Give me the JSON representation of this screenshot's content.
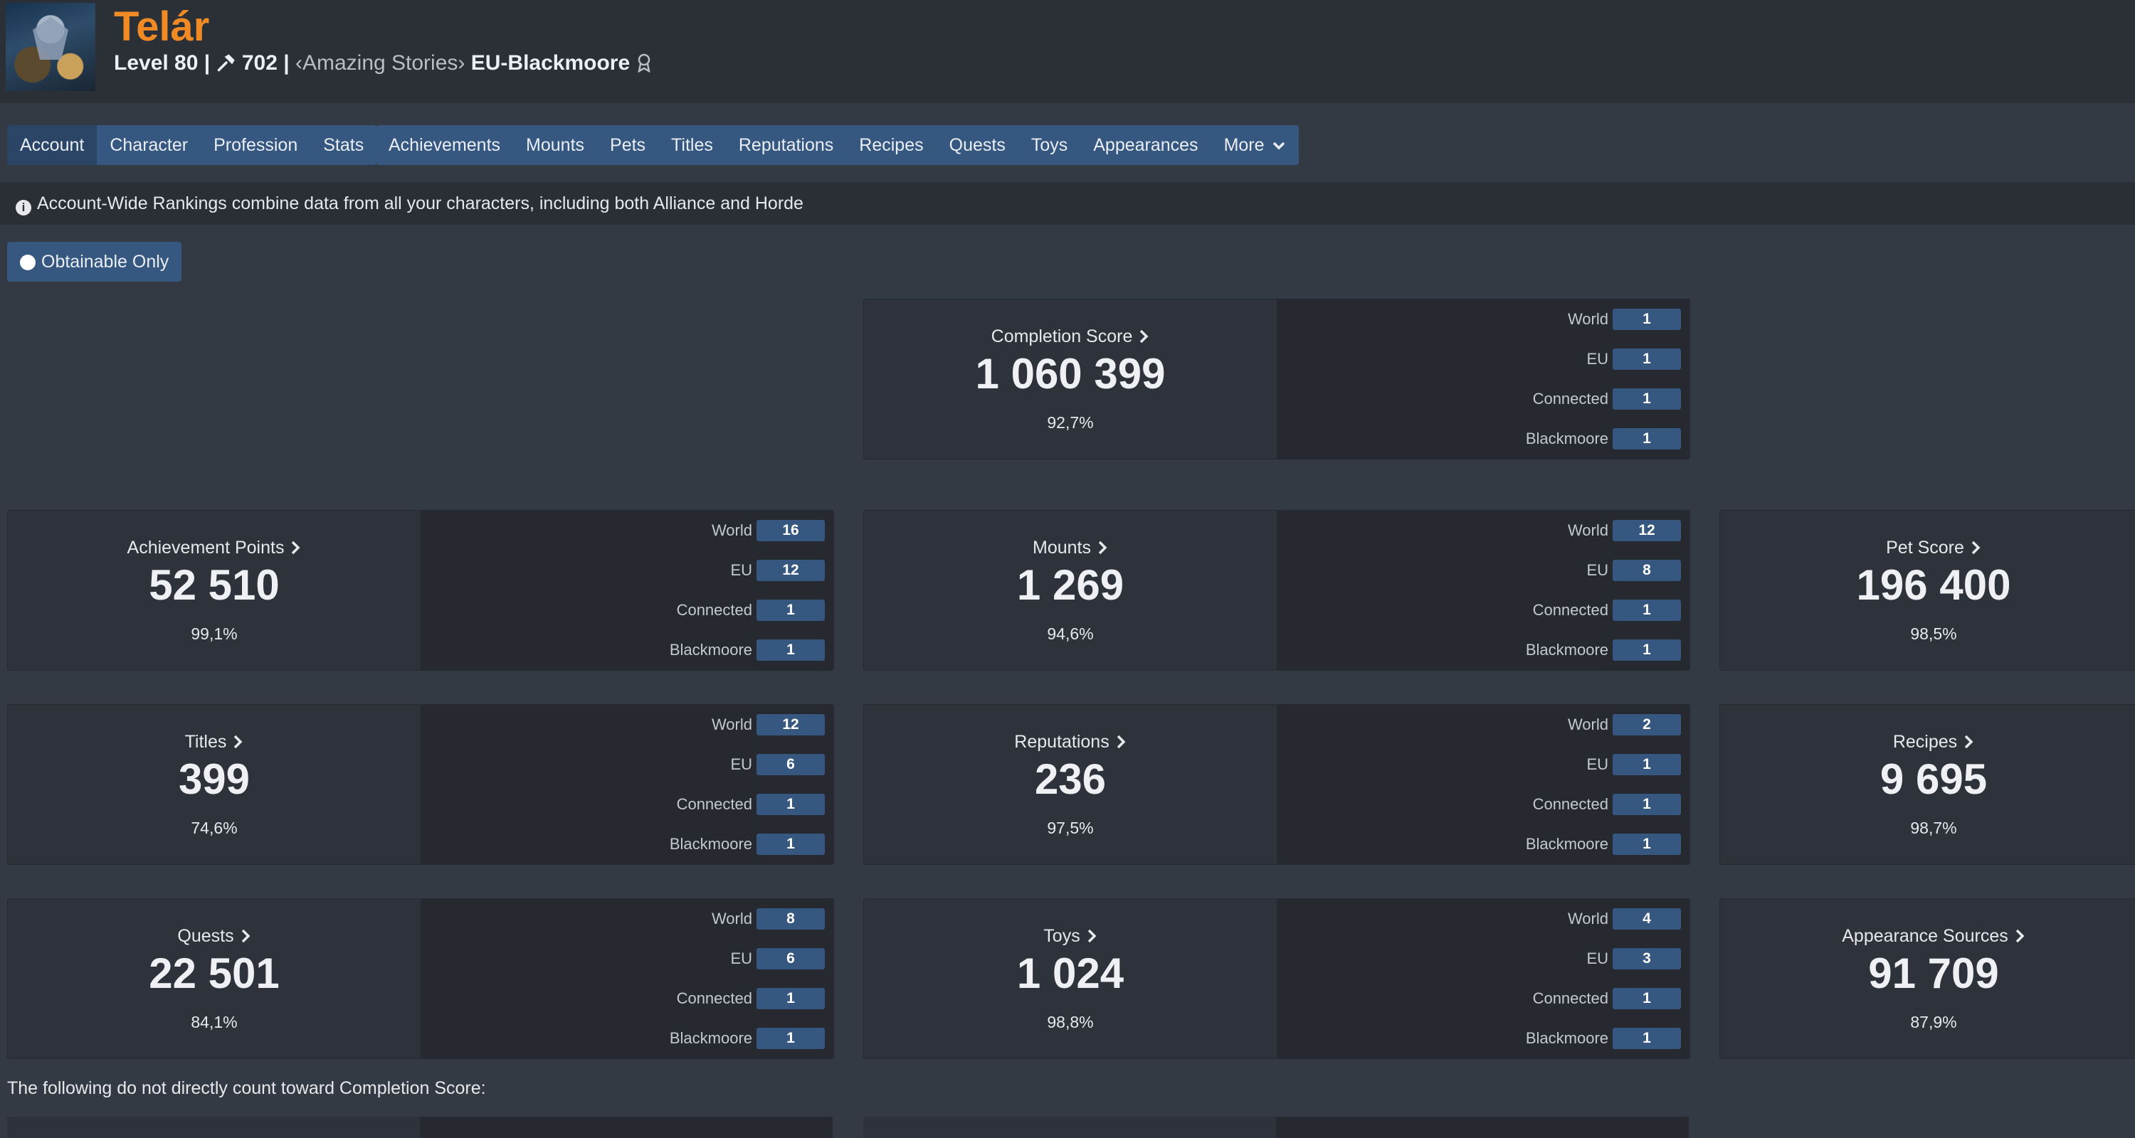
{
  "header": {
    "name": "Telár",
    "level_text": "Level 80 |",
    "item_level": "702 |",
    "guild": "‹Amazing Stories›",
    "realm": "EU-Blackmoore"
  },
  "nav_primary": [
    {
      "label": "Account",
      "active": true
    },
    {
      "label": "Character"
    },
    {
      "label": "Profession"
    },
    {
      "label": "Stats"
    }
  ],
  "nav_secondary": [
    {
      "label": "Achievements"
    },
    {
      "label": "Mounts"
    },
    {
      "label": "Pets"
    },
    {
      "label": "Titles"
    },
    {
      "label": "Reputations"
    },
    {
      "label": "Recipes"
    },
    {
      "label": "Quests"
    },
    {
      "label": "Toys"
    },
    {
      "label": "Appearances"
    },
    {
      "label": "More"
    }
  ],
  "info_text": "Account-Wide Rankings combine data from all your characters, including both Alliance and Horde",
  "toggle_label": "Obtainable Only",
  "rank_labels": {
    "world": "World",
    "eu": "EU",
    "connected": "Connected",
    "realm": "Blackmoore"
  },
  "cards": {
    "completion": {
      "title": "Completion Score",
      "value": "1 060 399",
      "pct": "92,7%",
      "ranks": [
        "1",
        "1",
        "1",
        "1"
      ]
    },
    "achievements": {
      "title": "Achievement Points",
      "value": "52 510",
      "pct": "99,1%",
      "ranks": [
        "16",
        "12",
        "1",
        "1"
      ]
    },
    "mounts": {
      "title": "Mounts",
      "value": "1 269",
      "pct": "94,6%",
      "ranks": [
        "12",
        "8",
        "1",
        "1"
      ]
    },
    "pets": {
      "title": "Pet Score",
      "value": "196 400",
      "pct": "98,5%"
    },
    "titles": {
      "title": "Titles",
      "value": "399",
      "pct": "74,6%",
      "ranks": [
        "12",
        "6",
        "1",
        "1"
      ]
    },
    "reputations": {
      "title": "Reputations",
      "value": "236",
      "pct": "97,5%",
      "ranks": [
        "2",
        "1",
        "1",
        "1"
      ]
    },
    "recipes": {
      "title": "Recipes",
      "value": "9 695",
      "pct": "98,7%"
    },
    "quests": {
      "title": "Quests",
      "value": "22 501",
      "pct": "84,1%",
      "ranks": [
        "8",
        "6",
        "1",
        "1"
      ]
    },
    "toys": {
      "title": "Toys",
      "value": "1 024",
      "pct": "98,8%",
      "ranks": [
        "4",
        "3",
        "1",
        "1"
      ]
    },
    "appearances": {
      "title": "Appearance Sources",
      "value": "91 709",
      "pct": "87,9%"
    }
  },
  "note_text": "The following do not directly count toward Completion Score:"
}
